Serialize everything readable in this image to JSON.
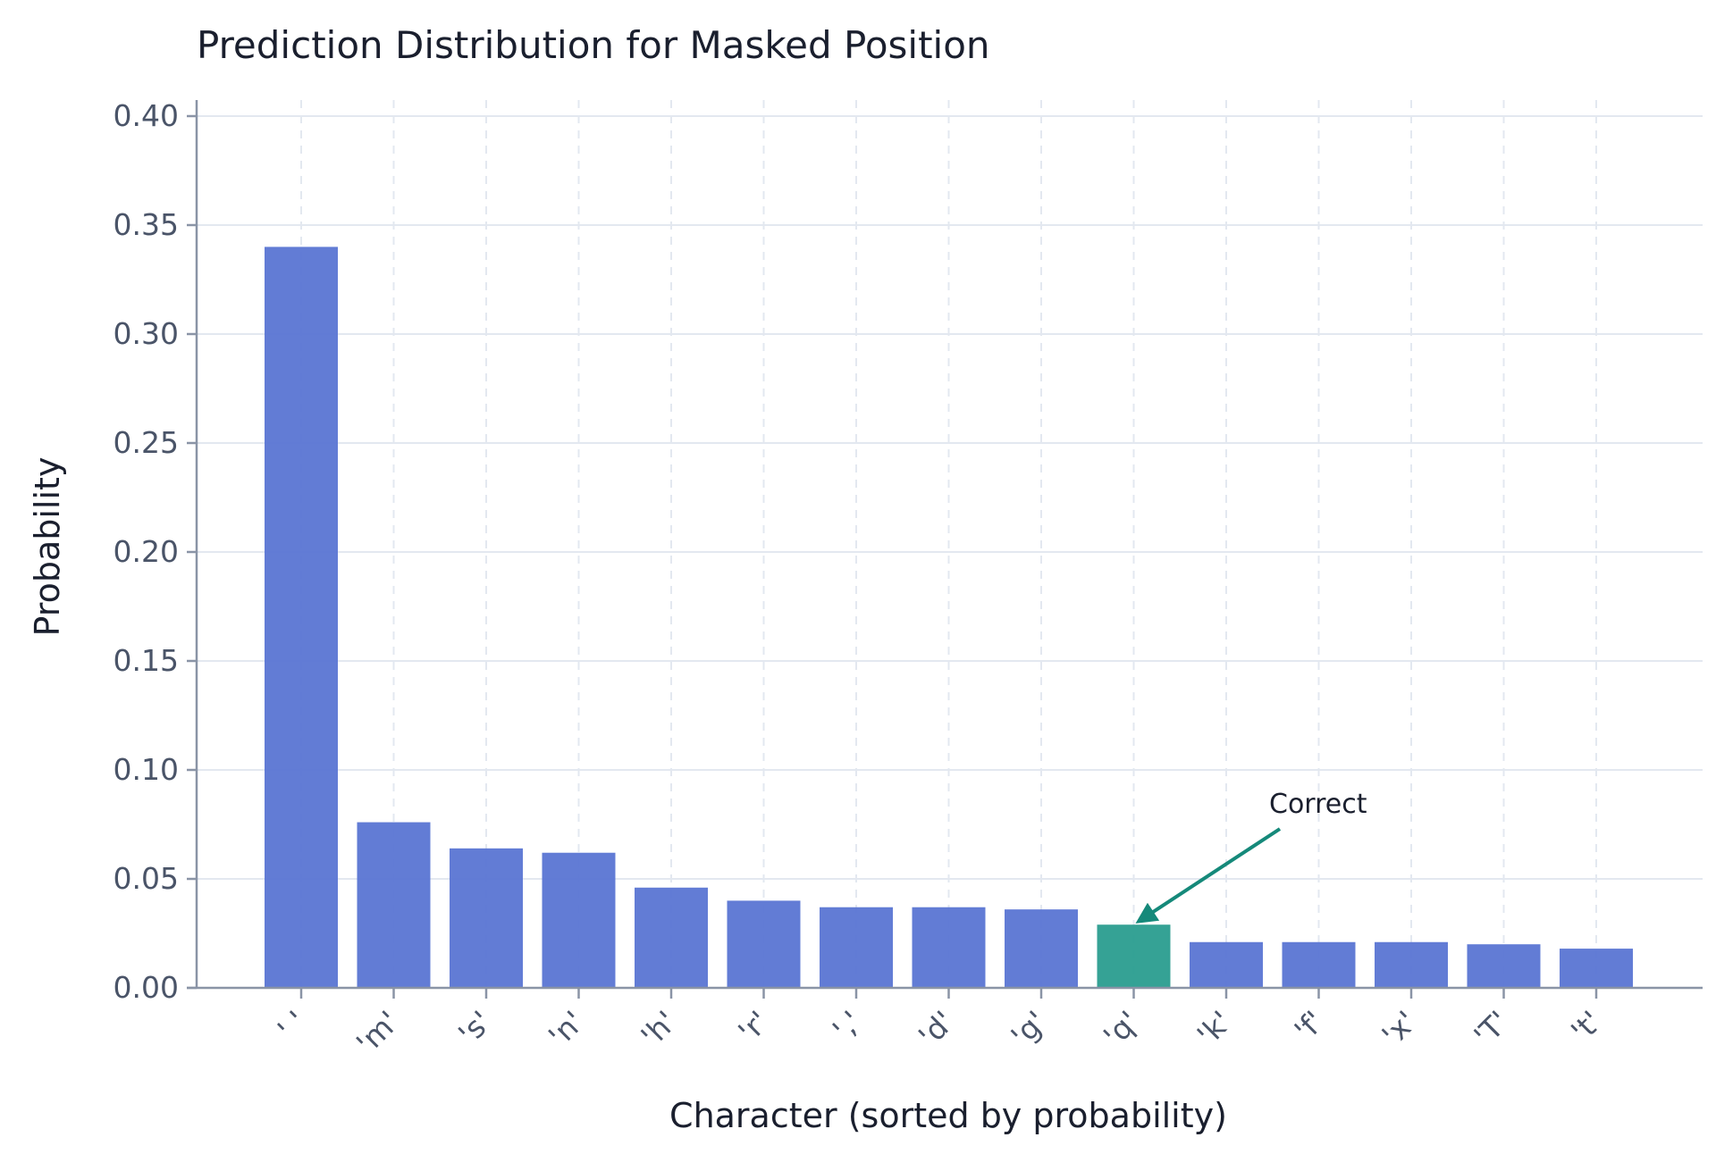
{
  "chart_data": {
    "type": "bar",
    "title": "Prediction Distribution for Masked Position",
    "xlabel": "Character (sorted by probability)",
    "ylabel": "Probability",
    "categories": [
      "' '",
      "'m'",
      "'s'",
      "'n'",
      "'h'",
      "'r'",
      "','",
      "'d'",
      "'g'",
      "'q'",
      "'k'",
      "'f'",
      "'x'",
      "'T'",
      "'t'"
    ],
    "values": [
      0.34,
      0.076,
      0.064,
      0.062,
      0.046,
      0.04,
      0.037,
      0.037,
      0.036,
      0.029,
      0.021,
      0.021,
      0.021,
      0.02,
      0.018
    ],
    "highlight_index": 9,
    "ylim": [
      0,
      0.4
    ],
    "yticks": [
      "0.00",
      "0.05",
      "0.10",
      "0.15",
      "0.20",
      "0.25",
      "0.30",
      "0.35",
      "0.40"
    ],
    "grid": true,
    "annotation": {
      "text": "Correct",
      "target_index": 9
    },
    "colors": {
      "bar": "#5a75d3",
      "highlight": "#2a9d8f",
      "arrow": "#15897a",
      "grid": "#e3e8f0",
      "axis": "#8a94a6"
    }
  }
}
